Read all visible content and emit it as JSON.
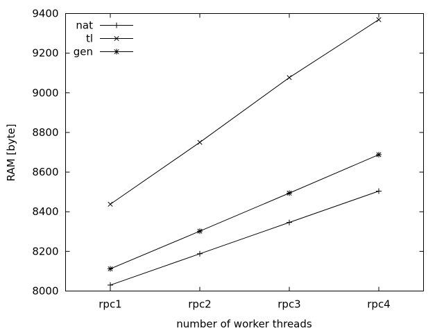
{
  "chart_data": {
    "type": "line",
    "title": "",
    "xlabel": "number of worker threads",
    "ylabel": "RAM [byte]",
    "categories": [
      "rpc1",
      "rpc2",
      "rpc3",
      "rpc4"
    ],
    "ylim": [
      8000,
      9400
    ],
    "yticks": [
      8000,
      8200,
      8400,
      8600,
      8800,
      9000,
      9200,
      9400
    ],
    "grid": false,
    "legend_position": "top-left",
    "series": [
      {
        "name": "nat",
        "marker": "plus",
        "values": [
          8030,
          8188,
          8346,
          8504
        ]
      },
      {
        "name": "tl",
        "marker": "cross",
        "values": [
          8438,
          8750,
          9077,
          9369
        ]
      },
      {
        "name": "gen",
        "marker": "star",
        "values": [
          8112,
          8302,
          8494,
          8688
        ]
      }
    ]
  }
}
